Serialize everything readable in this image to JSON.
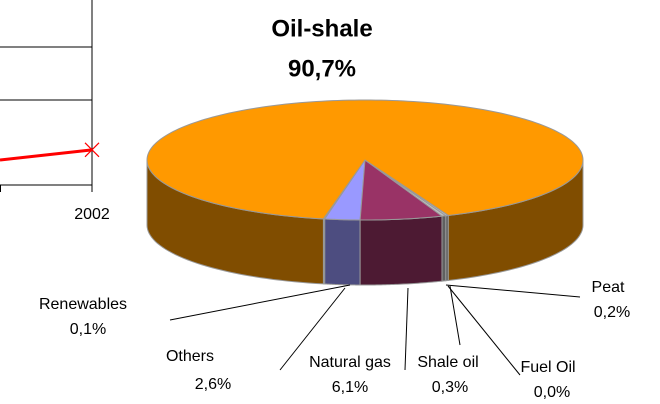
{
  "chart_data": [
    {
      "type": "pie3d",
      "categories": [
        "Renewables",
        "Others",
        "Natural gas",
        "Shale oil",
        "Fuel Oil",
        "Peat",
        "Oil-shale"
      ],
      "values": [
        0.1,
        2.6,
        6.1,
        0.3,
        0.0,
        0.2,
        90.7
      ],
      "value_labels": [
        "0,1%",
        "2,6%",
        "6,1%",
        "0,3%",
        "0,0%",
        "0,2%",
        "90,7%"
      ],
      "colors": [
        "#ccffff",
        "#9999ff",
        "#993366",
        "#c0c0c0",
        "#ffffcc",
        "#c0c0c0",
        "#ff9900"
      ]
    },
    {
      "type": "line",
      "categories": [
        null,
        "2002"
      ],
      "ylim": [
        0,
        4
      ],
      "series": [
        {
          "color": "#ff0000",
          "values": [
            0.54,
            0.76
          ]
        }
      ]
    }
  ]
}
